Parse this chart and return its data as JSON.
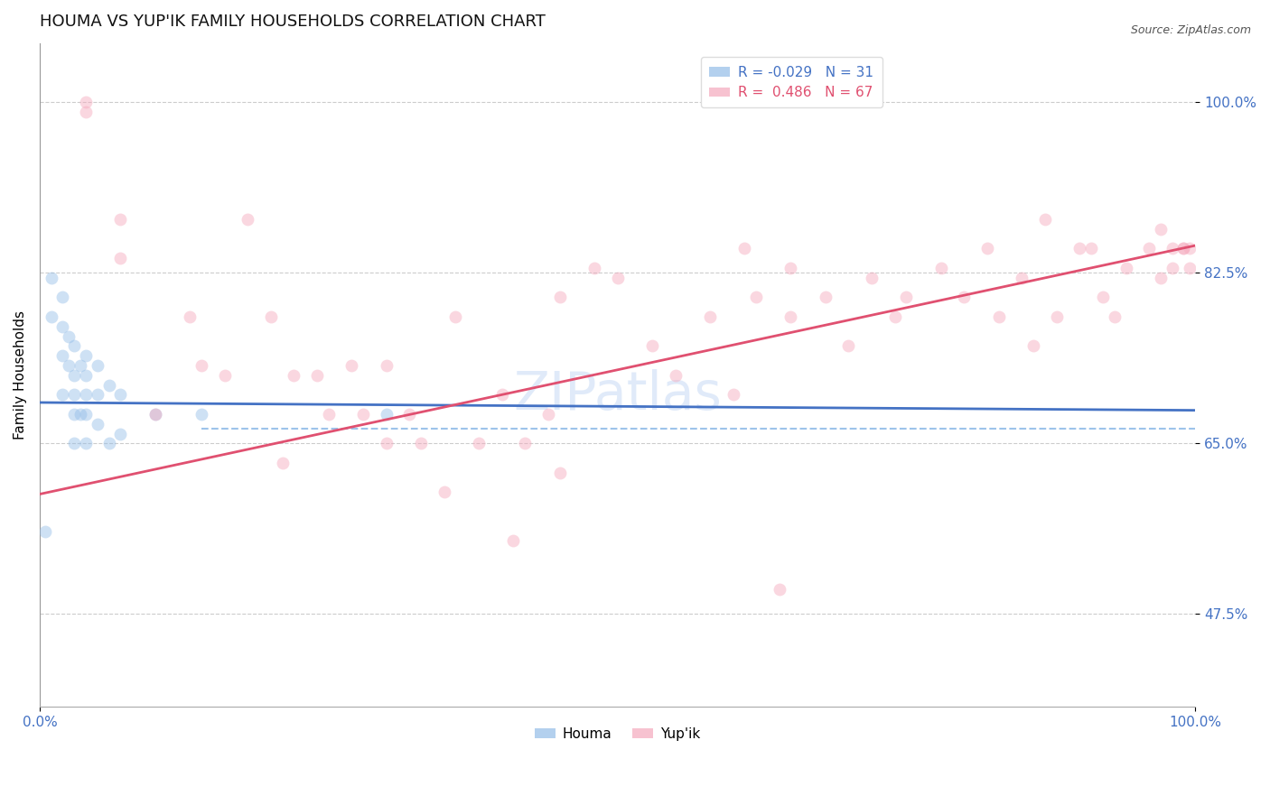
{
  "title": "HOUMA VS YUP'IK FAMILY HOUSEHOLDS CORRELATION CHART",
  "source": "Source: ZipAtlas.com",
  "ylabel": "Family Households",
  "xlim": [
    0.0,
    1.0
  ],
  "ylim": [
    0.38,
    1.06
  ],
  "yticks": [
    0.475,
    0.65,
    0.825,
    1.0
  ],
  "ytick_labels": [
    "47.5%",
    "65.0%",
    "82.5%",
    "100.0%"
  ],
  "houma_R": "-0.029",
  "houma_N": "31",
  "yupik_R": "0.486",
  "yupik_N": "67",
  "houma_color": "#93bde8",
  "yupik_color": "#f5a8bc",
  "houma_line_color": "#4472c4",
  "yupik_line_color": "#e05070",
  "dashed_line_color": "#93bde8",
  "grid_color": "#cccccc",
  "axis_label_color": "#4472c4",
  "background_color": "#ffffff",
  "houma_x": [
    0.005,
    0.01,
    0.01,
    0.02,
    0.02,
    0.02,
    0.02,
    0.025,
    0.025,
    0.03,
    0.03,
    0.03,
    0.03,
    0.03,
    0.035,
    0.035,
    0.04,
    0.04,
    0.04,
    0.04,
    0.04,
    0.05,
    0.05,
    0.05,
    0.06,
    0.06,
    0.07,
    0.07,
    0.1,
    0.14,
    0.3
  ],
  "houma_y": [
    0.56,
    0.82,
    0.78,
    0.8,
    0.77,
    0.74,
    0.7,
    0.76,
    0.73,
    0.75,
    0.72,
    0.7,
    0.68,
    0.65,
    0.73,
    0.68,
    0.74,
    0.72,
    0.7,
    0.68,
    0.65,
    0.73,
    0.7,
    0.67,
    0.71,
    0.65,
    0.7,
    0.66,
    0.68,
    0.68,
    0.68
  ],
  "yupik_x": [
    0.04,
    0.04,
    0.07,
    0.07,
    0.1,
    0.13,
    0.14,
    0.16,
    0.18,
    0.2,
    0.21,
    0.22,
    0.24,
    0.25,
    0.27,
    0.28,
    0.3,
    0.3,
    0.32,
    0.33,
    0.35,
    0.36,
    0.38,
    0.4,
    0.41,
    0.42,
    0.44,
    0.45,
    0.45,
    0.48,
    0.5,
    0.53,
    0.55,
    0.58,
    0.6,
    0.61,
    0.62,
    0.64,
    0.65,
    0.65,
    0.68,
    0.7,
    0.72,
    0.74,
    0.75,
    0.78,
    0.8,
    0.82,
    0.83,
    0.85,
    0.86,
    0.87,
    0.88,
    0.9,
    0.91,
    0.92,
    0.93,
    0.94,
    0.96,
    0.97,
    0.97,
    0.98,
    0.98,
    0.99,
    0.99,
    0.995,
    0.995
  ],
  "yupik_y": [
    1.0,
    0.99,
    0.88,
    0.84,
    0.68,
    0.78,
    0.73,
    0.72,
    0.88,
    0.78,
    0.63,
    0.72,
    0.72,
    0.68,
    0.73,
    0.68,
    0.65,
    0.73,
    0.68,
    0.65,
    0.6,
    0.78,
    0.65,
    0.7,
    0.55,
    0.65,
    0.68,
    0.62,
    0.8,
    0.83,
    0.82,
    0.75,
    0.72,
    0.78,
    0.7,
    0.85,
    0.8,
    0.5,
    0.78,
    0.83,
    0.8,
    0.75,
    0.82,
    0.78,
    0.8,
    0.83,
    0.8,
    0.85,
    0.78,
    0.82,
    0.75,
    0.88,
    0.78,
    0.85,
    0.85,
    0.8,
    0.78,
    0.83,
    0.85,
    0.87,
    0.82,
    0.85,
    0.83,
    0.85,
    0.85,
    0.85,
    0.83
  ],
  "houma_line_x0": 0.0,
  "houma_line_x1": 1.0,
  "houma_line_y0": 0.692,
  "houma_line_y1": 0.684,
  "yupik_line_x0": 0.0,
  "yupik_line_x1": 1.0,
  "yupik_line_y0": 0.598,
  "yupik_line_y1": 0.853,
  "dashed_line_x0": 0.14,
  "dashed_line_x1": 1.0,
  "dashed_line_y": 0.665,
  "marker_size": 100,
  "marker_alpha": 0.45,
  "title_fontsize": 13,
  "legend_fontsize": 11,
  "tick_fontsize": 11,
  "ylabel_fontsize": 11,
  "watermark_text": "ZIPatlas",
  "watermark_color": "#ccddf5",
  "watermark_alpha": 0.6,
  "watermark_fontsize": 42
}
